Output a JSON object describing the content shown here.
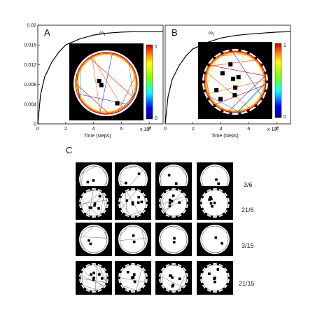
{
  "figure": {
    "panels": {
      "a": "A",
      "b": "B",
      "c": "C"
    },
    "omega_label": "ω",
    "omega_sub": "1",
    "x_axis_label": "Time (steps)",
    "x_multiplier": "x 10",
    "x_multiplier_exp": "4",
    "colorbar_ticks": [
      "1",
      "0"
    ],
    "row_labels": [
      "3/6",
      "21/6",
      "3/15",
      "21/15"
    ],
    "colors": {
      "curve": "#000000",
      "frame": "#000000",
      "arena": "#ffffff"
    }
  },
  "chart_data": [
    {
      "type": "line",
      "panel": "A",
      "series": [
        {
          "name": "ω1",
          "x": [
            0,
            0.2,
            0.5,
            1,
            1.5,
            2,
            3,
            4,
            5,
            6,
            7,
            8,
            9
          ],
          "y": [
            0,
            0.006,
            0.0095,
            0.0125,
            0.0145,
            0.016,
            0.0172,
            0.018,
            0.0184,
            0.0186,
            0.0187,
            0.0187,
            0.0187
          ]
        }
      ],
      "xlim": [
        0,
        9
      ],
      "ylim": [
        0,
        0.02
      ],
      "x_ticks": [
        "0",
        "2",
        "4",
        "6",
        "8"
      ],
      "y_ticks": [
        "0",
        "0.004",
        "0.008",
        "0.012",
        "0.016",
        "0.02"
      ],
      "xlabel": "Time (steps)"
    },
    {
      "type": "line",
      "panel": "B",
      "series": [
        {
          "name": "ω1",
          "x": [
            0,
            0.2,
            0.5,
            1,
            1.5,
            2,
            3,
            4,
            5,
            6,
            7,
            8,
            9
          ],
          "y": [
            0,
            0.0055,
            0.009,
            0.0118,
            0.0138,
            0.0152,
            0.0165,
            0.0174,
            0.0179,
            0.0182,
            0.0184,
            0.0186,
            0.0187
          ]
        }
      ],
      "xlim": [
        0,
        9
      ],
      "ylim": [
        0,
        0.02
      ],
      "x_ticks": [
        "0",
        "2",
        "4",
        "6",
        "8"
      ],
      "xlabel": "Time (steps)"
    }
  ]
}
